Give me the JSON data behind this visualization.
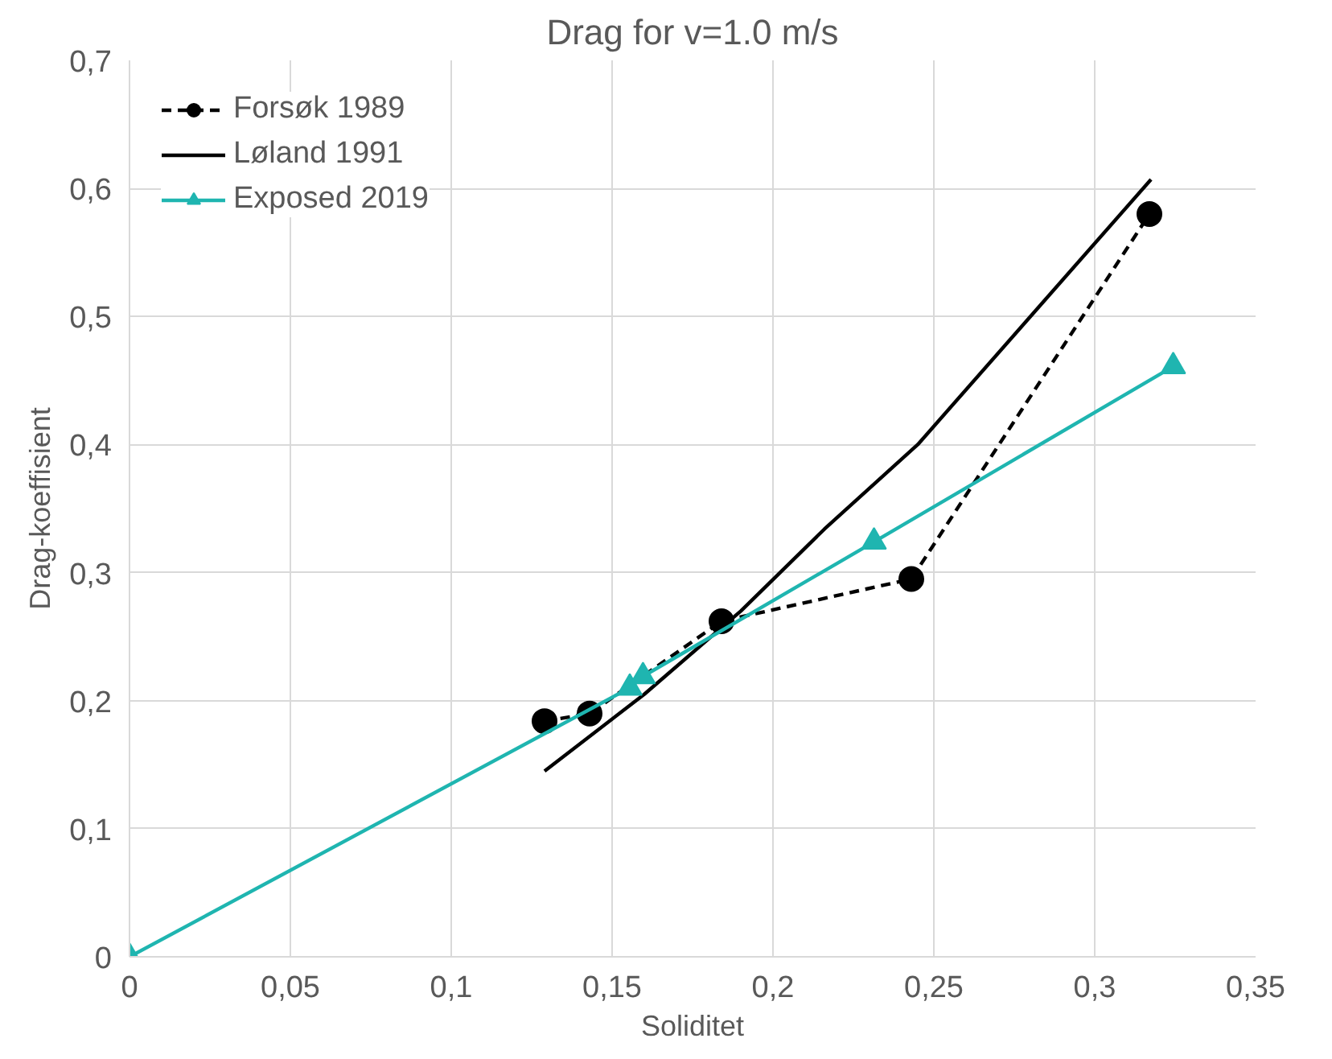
{
  "chart_data": {
    "type": "line",
    "title": "Drag for v=1.0 m/s",
    "xlabel": "Soliditet",
    "ylabel": "Drag-koeffisient",
    "xlim": [
      0,
      0.35
    ],
    "ylim": [
      0,
      0.7
    ],
    "xticks": [
      0,
      {
        "value": 0.05,
        "label": "0,05"
      },
      {
        "value": 0.1,
        "label": "0,1"
      },
      {
        "value": 0.15,
        "label": "0,15"
      },
      {
        "value": 0.2,
        "label": "0,2"
      },
      {
        "value": 0.25,
        "label": "0,25"
      },
      {
        "value": 0.3,
        "label": "0,3"
      },
      {
        "value": 0.35,
        "label": "0,35"
      }
    ],
    "yticks": [
      0,
      {
        "value": 0.1,
        "label": "0,1"
      },
      {
        "value": 0.2,
        "label": "0,2"
      },
      {
        "value": 0.3,
        "label": "0,3"
      },
      {
        "value": 0.4,
        "label": "0,4"
      },
      {
        "value": 0.5,
        "label": "0,5"
      },
      {
        "value": 0.6,
        "label": "0,6"
      },
      {
        "value": 0.7,
        "label": "0,7"
      }
    ],
    "grid": true,
    "legend": "top left",
    "series": [
      {
        "name": "Forsøk 1989",
        "color": "#000000",
        "marker": "circle",
        "line_style": "dashed",
        "x": [
          0.129,
          0.143,
          0.184,
          0.243,
          0.317
        ],
        "values": [
          0.184,
          0.19,
          0.262,
          0.295,
          0.58
        ]
      },
      {
        "name": "Løland 1991",
        "color": "#000000",
        "marker": "none",
        "line_style": "solid",
        "x": [
          0.129,
          0.16,
          0.19,
          0.216,
          0.245,
          0.3175
        ],
        "values": [
          0.145,
          0.205,
          0.27,
          0.334,
          0.4,
          0.607
        ]
      },
      {
        "name": "Exposed 2019",
        "color": "#1fb5b0",
        "marker": "triangle",
        "line_style": "solid",
        "x": [
          0,
          0.1555,
          0.1596,
          0.2314,
          0.3244
        ],
        "values": [
          0,
          0.21,
          0.219,
          0.324,
          0.461
        ]
      }
    ]
  }
}
